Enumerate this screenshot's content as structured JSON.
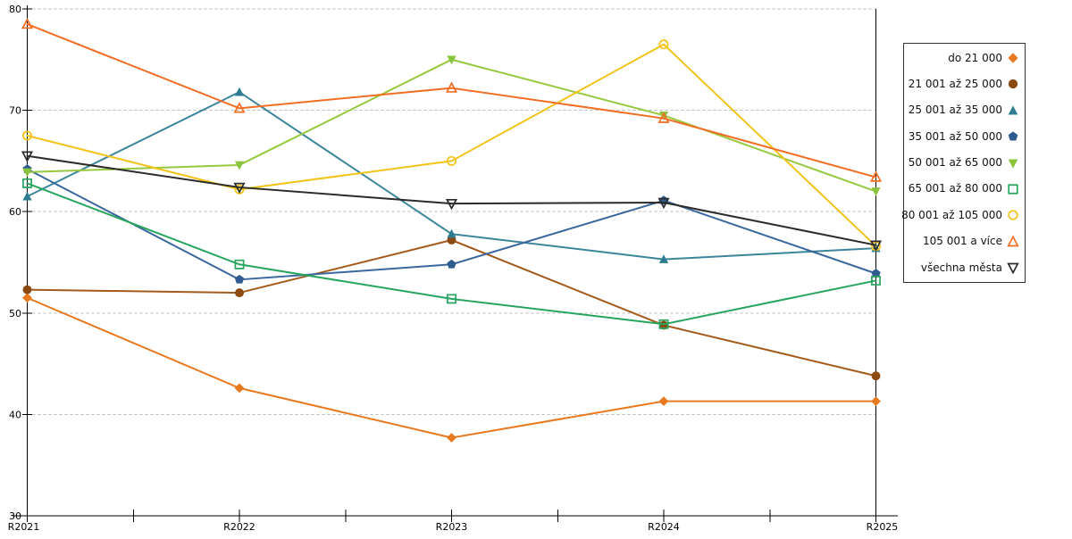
{
  "chart_data": {
    "type": "line",
    "categories": [
      "R2021",
      "R2022",
      "R2023",
      "R2024",
      "R2025"
    ],
    "series": [
      {
        "name": "do 21 000",
        "marker": "diamond",
        "filled": true,
        "color": "#E8791E",
        "marker_fill": "#E8791E",
        "values": [
          51.5,
          42.6,
          37.7,
          41.3,
          41.3
        ]
      },
      {
        "name": "21 001 až 25 000",
        "marker": "circle",
        "filled": true,
        "color": "#A45A1A",
        "marker_fill": "#8B4A10",
        "values": [
          52.3,
          52.0,
          57.2,
          48.8,
          43.8
        ]
      },
      {
        "name": "25 001 až 35 000",
        "marker": "triangle-up",
        "filled": true,
        "color": "#3C869B",
        "marker_fill": "#2E7C92",
        "values": [
          61.5,
          71.8,
          57.8,
          55.3,
          56.4
        ]
      },
      {
        "name": "35 001 až 50 000",
        "marker": "pentagon",
        "filled": true,
        "color": "#3A689E",
        "marker_fill": "#2F5C8F",
        "values": [
          64.2,
          53.3,
          54.8,
          61.1,
          53.9
        ]
      },
      {
        "name": "50 001 až 65 000",
        "marker": "triangle-down",
        "filled": true,
        "color": "#97C93F",
        "marker_fill": "#8AC33C",
        "values": [
          63.9,
          64.6,
          75.0,
          69.5,
          62.0
        ]
      },
      {
        "name": "65 001 až 80 000",
        "marker": "square",
        "filled": false,
        "color": "#27A55F",
        "values": [
          62.8,
          54.8,
          51.4,
          48.9,
          53.2
        ]
      },
      {
        "name": "80 001 až 105 000",
        "marker": "circle",
        "filled": false,
        "color": "#F2C318",
        "values": [
          67.5,
          62.2,
          65.0,
          76.5,
          56.6
        ]
      },
      {
        "name": "105 001 a více",
        "marker": "triangle-up",
        "filled": false,
        "color": "#F26E24",
        "values": [
          78.5,
          70.2,
          72.2,
          69.2,
          63.4
        ]
      },
      {
        "name": "všechna města",
        "marker": "triangle-down",
        "filled": false,
        "color": "#2B2B2B",
        "values": [
          65.5,
          62.4,
          60.8,
          60.9,
          56.7
        ]
      }
    ],
    "ylim": [
      30,
      80
    ],
    "yticks": [
      30,
      40,
      50,
      60,
      70,
      80
    ],
    "grid": "horizontal-dashed",
    "grid_color": "#B9B9B9",
    "axis_color": "#000000",
    "legend_position": "right",
    "x_minor_ticks": true
  }
}
